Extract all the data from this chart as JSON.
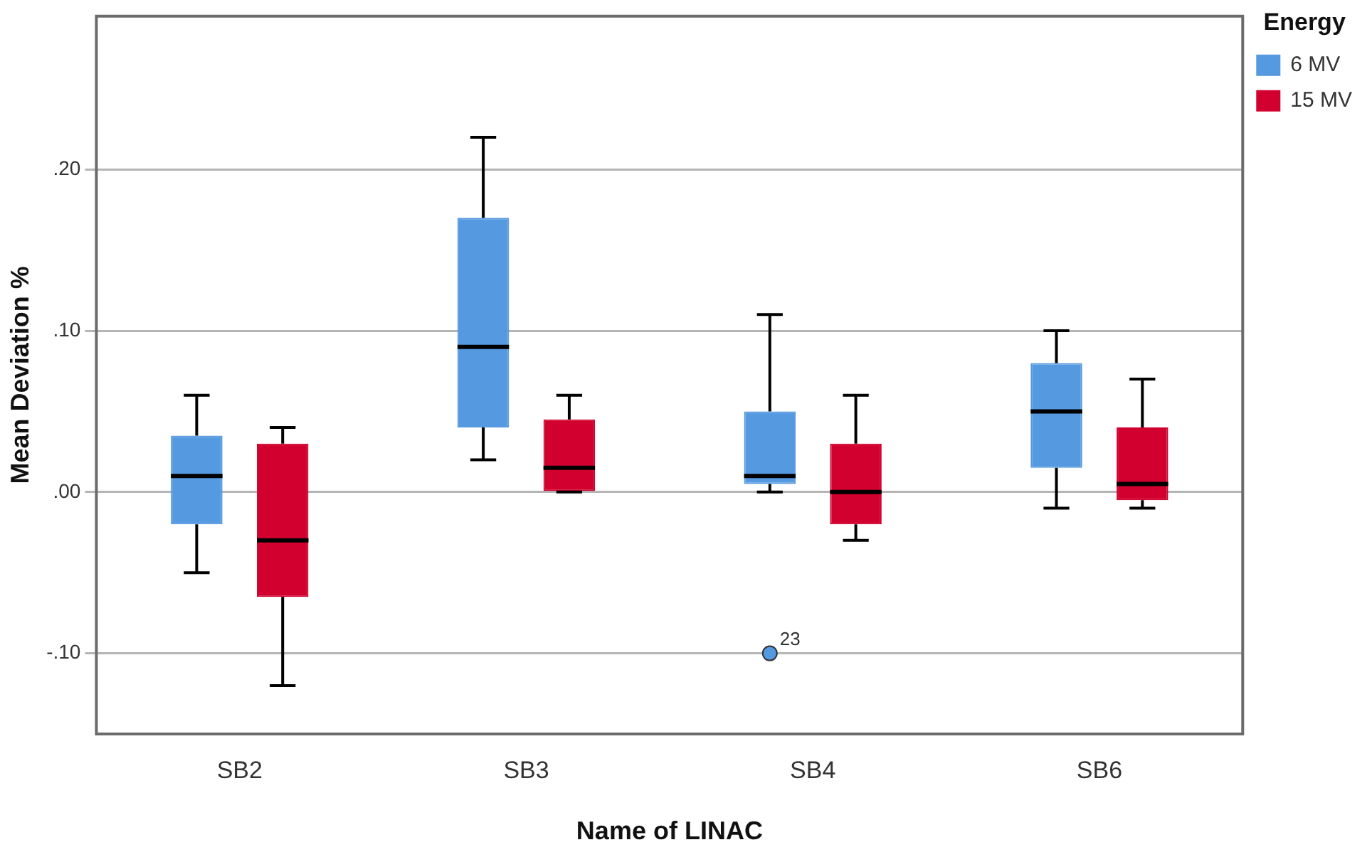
{
  "chart_data": {
    "type": "box",
    "xlabel": "Name of LINAC",
    "ylabel": "Mean Deviation %",
    "legend_title": "Energy",
    "legend": "top right",
    "grid": "y",
    "categories": [
      "SB2",
      "SB3",
      "SB4",
      "SB6"
    ],
    "ylim": [
      -0.15,
      0.295
    ],
    "yticks": [
      {
        "value": -0.1,
        "label": "-.10"
      },
      {
        "value": 0,
        "label": ".00"
      },
      {
        "value": 0.1,
        "label": ".10"
      },
      {
        "value": 0.2,
        "label": ".20"
      }
    ],
    "series": [
      {
        "name": "6 MV",
        "color": "#5599e0",
        "boxes": [
          {
            "low": -0.05,
            "q1": -0.02,
            "median": 0.01,
            "q3": 0.035,
            "high": 0.06
          },
          {
            "low": 0.02,
            "q1": 0.04,
            "median": 0.09,
            "q3": 0.17,
            "high": 0.22
          },
          {
            "low": 0,
            "q1": 0.005,
            "median": 0.01,
            "q3": 0.05,
            "high": 0.11,
            "outliers": [
              -0.1
            ]
          },
          {
            "low": -0.01,
            "q1": 0.015,
            "median": 0.05,
            "q3": 0.08,
            "high": 0.1
          }
        ]
      },
      {
        "name": "15 MV",
        "color": "#d2002e",
        "boxes": [
          {
            "low": -0.12,
            "q1": -0.065,
            "median": -0.03,
            "q3": 0.03,
            "high": 0.04
          },
          {
            "low": 0,
            "q1": 0,
            "median": 0.015,
            "q3": 0.045,
            "high": 0.06
          },
          {
            "low": -0.03,
            "q1": -0.02,
            "median": 0,
            "q3": 0.03,
            "high": 0.06
          },
          {
            "low": -0.01,
            "q1": -0.005,
            "median": 0.005,
            "q3": 0.04,
            "high": 0.07
          }
        ]
      }
    ],
    "annotations": [
      "23"
    ]
  }
}
